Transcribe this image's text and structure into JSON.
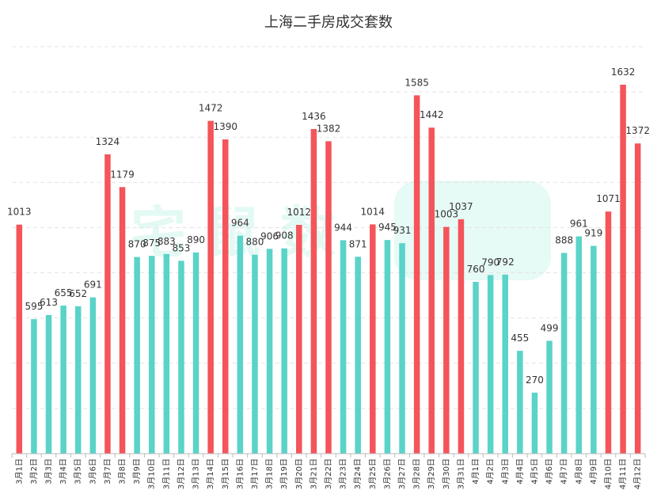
{
  "chart_data": {
    "type": "bar",
    "title": "上海二手房成交套数",
    "xlabel": "",
    "ylabel": "",
    "ylim": [
      0,
      1800
    ],
    "grid": true,
    "categories": [
      "3月1日",
      "3月2日",
      "3月3日",
      "3月4日",
      "3月5日",
      "3月6日",
      "3月7日",
      "3月8日",
      "3月9日",
      "3月10日",
      "3月11日",
      "3月12日",
      "3月13日",
      "3月14日",
      "3月15日",
      "3月16日",
      "3月17日",
      "3月18日",
      "3月19日",
      "3月20日",
      "3月21日",
      "3月22日",
      "3月23日",
      "3月24日",
      "3月25日",
      "3月26日",
      "3月27日",
      "3月28日",
      "3月29日",
      "3月30日",
      "3月31日",
      "4月1日",
      "4月2日",
      "4月3日",
      "4月4日",
      "4月5日",
      "4月6日",
      "4月7日",
      "4月8日",
      "4月9日",
      "4月10日",
      "4月11日",
      "4月12日"
    ],
    "values": [
      1013,
      595,
      613,
      655,
      652,
      691,
      1324,
      1179,
      870,
      875,
      883,
      853,
      890,
      1472,
      1390,
      964,
      880,
      906,
      908,
      1012,
      1436,
      1382,
      944,
      871,
      1014,
      945,
      931,
      1585,
      1442,
      1003,
      1037,
      760,
      790,
      792,
      455,
      270,
      499,
      888,
      961,
      919,
      1071,
      1632,
      1372
    ],
    "highlighted": [
      true,
      false,
      false,
      false,
      false,
      false,
      true,
      true,
      false,
      false,
      false,
      false,
      false,
      true,
      true,
      false,
      false,
      false,
      false,
      true,
      true,
      true,
      false,
      false,
      true,
      false,
      false,
      true,
      true,
      true,
      true,
      false,
      false,
      false,
      false,
      false,
      false,
      false,
      false,
      false,
      true,
      true,
      true
    ],
    "colors": {
      "highlight": "#f4545a",
      "normal": "#5ad3c8",
      "grid": "#e4e4e4",
      "axis": "#bbbbbb"
    }
  }
}
